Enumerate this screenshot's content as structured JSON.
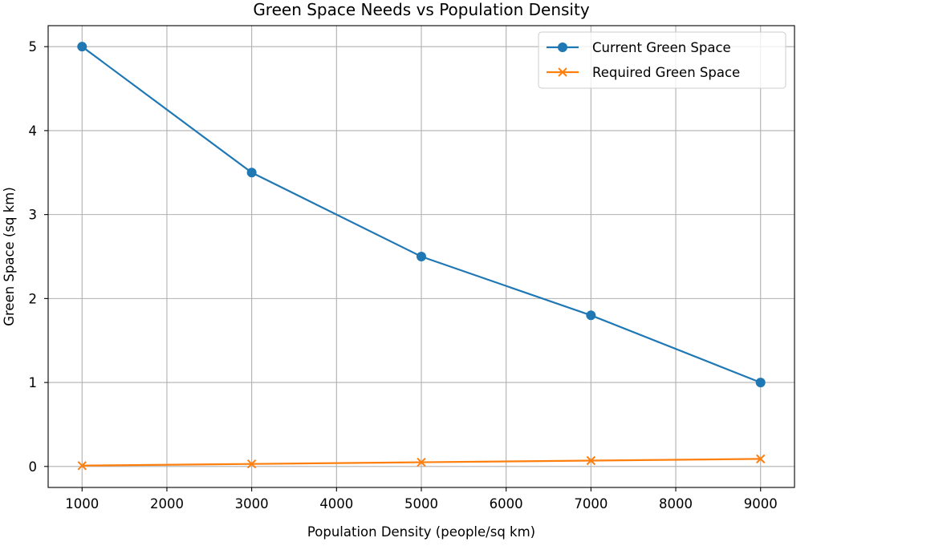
{
  "chart_data": {
    "type": "line",
    "title": "Green Space Needs vs Population Density",
    "xlabel": "Population Density (people/sq km)",
    "ylabel": "Green Space (sq km)",
    "xlim": [
      600,
      9400
    ],
    "ylim": [
      -0.25,
      5.25
    ],
    "xticks": [
      1000,
      2000,
      3000,
      4000,
      5000,
      6000,
      7000,
      8000,
      9000
    ],
    "yticks": [
      0,
      1,
      2,
      3,
      4,
      5
    ],
    "grid": true,
    "legend_position": "top-right",
    "x": [
      1000,
      3000,
      5000,
      7000,
      9000
    ],
    "series": [
      {
        "name": "Current Green Space",
        "values": [
          5,
          3.5,
          2.5,
          1.8,
          1
        ],
        "color": "#1f77b4",
        "marker": "circle"
      },
      {
        "name": "Required Green Space",
        "values": [
          0.01,
          0.03,
          0.05,
          0.07,
          0.09
        ],
        "color": "#ff7f0e",
        "marker": "x"
      }
    ]
  }
}
